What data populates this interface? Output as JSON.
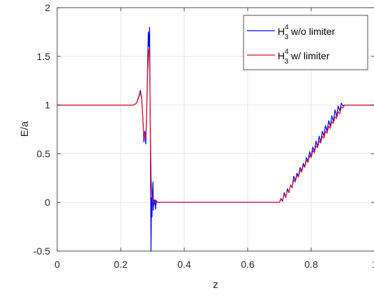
{
  "chart_data": {
    "type": "line",
    "xlabel": "z",
    "ylabel": "E/a",
    "xlim": [
      0,
      1
    ],
    "ylim": [
      -0.5,
      2
    ],
    "grid": true,
    "legend_placement": "top-right",
    "x_ticks": [
      0,
      0.2,
      0.4,
      0.6,
      0.8,
      1
    ],
    "x_tick_labels": [
      "0",
      "0.2",
      "0.4",
      "0.6",
      "0.8",
      "1"
    ],
    "y_ticks": [
      -0.5,
      0,
      0.5,
      1,
      1.5,
      2
    ],
    "y_tick_labels": [
      "-0.5",
      "0",
      "0.5",
      "1",
      "1.5",
      "2"
    ],
    "series": [
      {
        "name": "H",
        "name_sup": "4",
        "name_sub": "3",
        "name_suffix": " w/o limiter",
        "color": "#0000ff",
        "x": [
          0,
          0.24,
          0.25,
          0.258,
          0.262,
          0.266,
          0.27,
          0.273,
          0.276,
          0.279,
          0.282,
          0.285,
          0.287,
          0.289,
          0.291,
          0.2925,
          0.294,
          0.2955,
          0.297,
          0.2985,
          0.3,
          0.3015,
          0.303,
          0.3045,
          0.306,
          0.308,
          0.31,
          0.312,
          0.315,
          0.32,
          0.7,
          0.705,
          0.71,
          0.715,
          0.72,
          0.725,
          0.73,
          0.735,
          0.74,
          0.745,
          0.75,
          0.755,
          0.76,
          0.765,
          0.77,
          0.775,
          0.78,
          0.785,
          0.79,
          0.795,
          0.8,
          0.805,
          0.81,
          0.815,
          0.82,
          0.825,
          0.83,
          0.835,
          0.84,
          0.845,
          0.85,
          0.855,
          0.86,
          0.865,
          0.87,
          0.875,
          0.88,
          0.885,
          0.89,
          0.895,
          0.9,
          0.905,
          1
        ],
        "y": [
          1,
          1,
          1.02,
          1.1,
          1.15,
          1.07,
          0.85,
          0.62,
          0.73,
          0.6,
          0.95,
          1.45,
          1.75,
          1.6,
          1.8,
          1.1,
          0.3,
          -0.5,
          0.05,
          -0.15,
          0.05,
          0.21,
          -0.08,
          0.02,
          -0.02,
          0.03,
          -0.07,
          0.02,
          0,
          0,
          0,
          0.04,
          0.01,
          0.1,
          0.05,
          0.14,
          0.1,
          0.18,
          0.15,
          0.27,
          0.22,
          0.3,
          0.27,
          0.36,
          0.32,
          0.4,
          0.37,
          0.46,
          0.42,
          0.52,
          0.47,
          0.57,
          0.52,
          0.63,
          0.57,
          0.68,
          0.62,
          0.73,
          0.68,
          0.79,
          0.73,
          0.84,
          0.78,
          0.89,
          0.83,
          0.95,
          0.88,
          0.99,
          0.94,
          1.02,
          0.99,
          1,
          1
        ]
      },
      {
        "name": "H",
        "name_sup": "4",
        "name_sub": "3",
        "name_suffix": " w/ limiter",
        "color": "#e8141e",
        "x": [
          0,
          0.24,
          0.25,
          0.258,
          0.262,
          0.266,
          0.27,
          0.273,
          0.276,
          0.279,
          0.282,
          0.285,
          0.288,
          0.29,
          0.292,
          0.294,
          0.296,
          0.298,
          0.3,
          0.303,
          0.306,
          0.31,
          0.7,
          0.705,
          0.71,
          0.715,
          0.72,
          0.725,
          0.73,
          0.735,
          0.74,
          0.745,
          0.75,
          0.755,
          0.76,
          0.765,
          0.77,
          0.775,
          0.78,
          0.785,
          0.79,
          0.795,
          0.8,
          0.805,
          0.81,
          0.815,
          0.82,
          0.825,
          0.83,
          0.835,
          0.84,
          0.845,
          0.85,
          0.855,
          0.86,
          0.865,
          0.87,
          0.875,
          0.88,
          0.885,
          0.89,
          0.895,
          0.9,
          0.905,
          1
        ],
        "y": [
          1,
          1,
          1.02,
          1.09,
          1.13,
          1.06,
          0.85,
          0.66,
          0.7,
          0.66,
          0.95,
          1.35,
          1.55,
          1.58,
          1.2,
          0.6,
          0.25,
          0.08,
          0.02,
          0,
          0.005,
          0,
          0,
          0.03,
          0.02,
          0.08,
          0.06,
          0.12,
          0.11,
          0.17,
          0.16,
          0.23,
          0.21,
          0.28,
          0.26,
          0.33,
          0.31,
          0.38,
          0.36,
          0.43,
          0.41,
          0.48,
          0.46,
          0.53,
          0.51,
          0.58,
          0.56,
          0.63,
          0.61,
          0.68,
          0.66,
          0.73,
          0.71,
          0.78,
          0.76,
          0.83,
          0.81,
          0.88,
          0.86,
          0.93,
          0.91,
          0.98,
          0.97,
          1,
          1
        ]
      }
    ]
  }
}
